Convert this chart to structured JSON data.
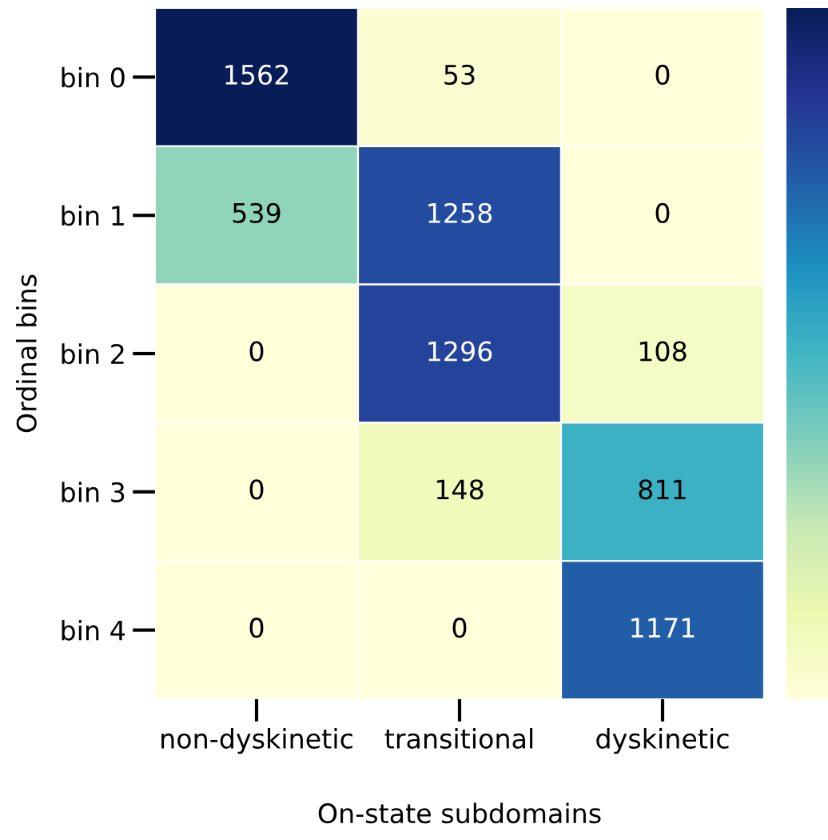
{
  "chart_data": {
    "type": "heatmap",
    "xlabel": "On-state subdomains",
    "ylabel": "Ordinal bins",
    "categories": [
      "non-dyskinetic",
      "transitional",
      "dyskinetic"
    ],
    "y_categories": [
      "bin 0",
      "bin 1",
      "bin 2",
      "bin 3",
      "bin 4"
    ],
    "cells": [
      [
        1562,
        53,
        0
      ],
      [
        539,
        1258,
        0
      ],
      [
        0,
        1296,
        108
      ],
      [
        0,
        148,
        811
      ],
      [
        0,
        0,
        1171
      ]
    ],
    "data_labels": true
  }
}
